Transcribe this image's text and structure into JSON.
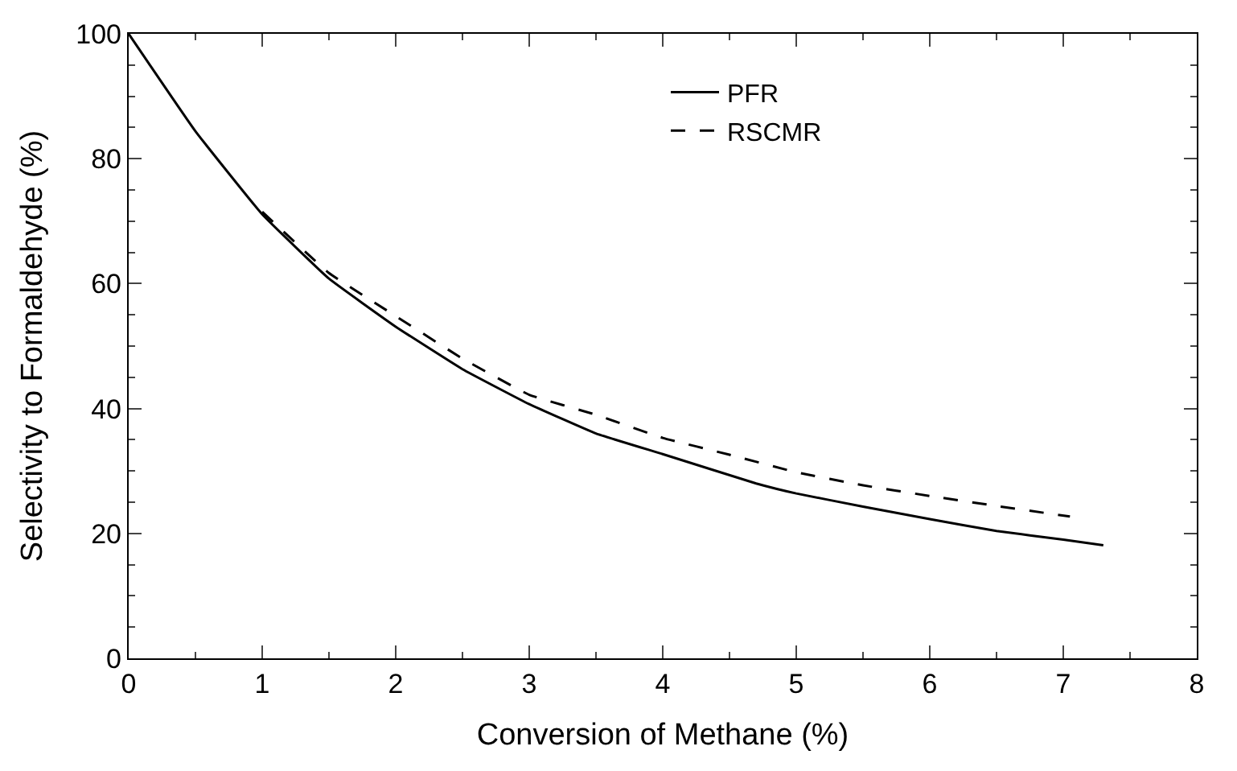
{
  "chart_data": {
    "type": "line",
    "xlabel": "Conversion of Methane (%)",
    "ylabel": "Selectivity to Formaldehyde (%)",
    "xlim": [
      0,
      8
    ],
    "xticks": [
      0,
      1,
      2,
      3,
      4,
      5,
      6,
      7,
      8
    ],
    "ylim": [
      0,
      100
    ],
    "yticks": [
      0,
      20,
      40,
      60,
      80,
      100
    ],
    "legend": "top",
    "marker": "none",
    "series": [
      {
        "name": "PFR",
        "color": "#000000",
        "line_style": "solid",
        "x": [
          0,
          0.5,
          1,
          1.5,
          2,
          2.5,
          3,
          3.5,
          4,
          4.7,
          5,
          5.5,
          6,
          6.5,
          7,
          7.3
        ],
        "values": [
          100,
          84.4,
          71.1,
          60.8,
          53.1,
          46.3,
          40.7,
          36,
          32.7,
          28,
          26.4,
          24.3,
          22.3,
          20.4,
          19,
          18.1
        ]
      },
      {
        "name": "RSCMR",
        "color": "#000000",
        "line_style": "dashed",
        "x": [
          1,
          1.5,
          2,
          2.5,
          3,
          3.5,
          4,
          4.5,
          5,
          5.5,
          6,
          6.5,
          7.05
        ],
        "values": [
          71.5,
          61.7,
          54.8,
          48,
          42.2,
          39,
          35.3,
          32.6,
          29.8,
          27.7,
          26,
          24.4,
          22.7
        ]
      }
    ]
  }
}
